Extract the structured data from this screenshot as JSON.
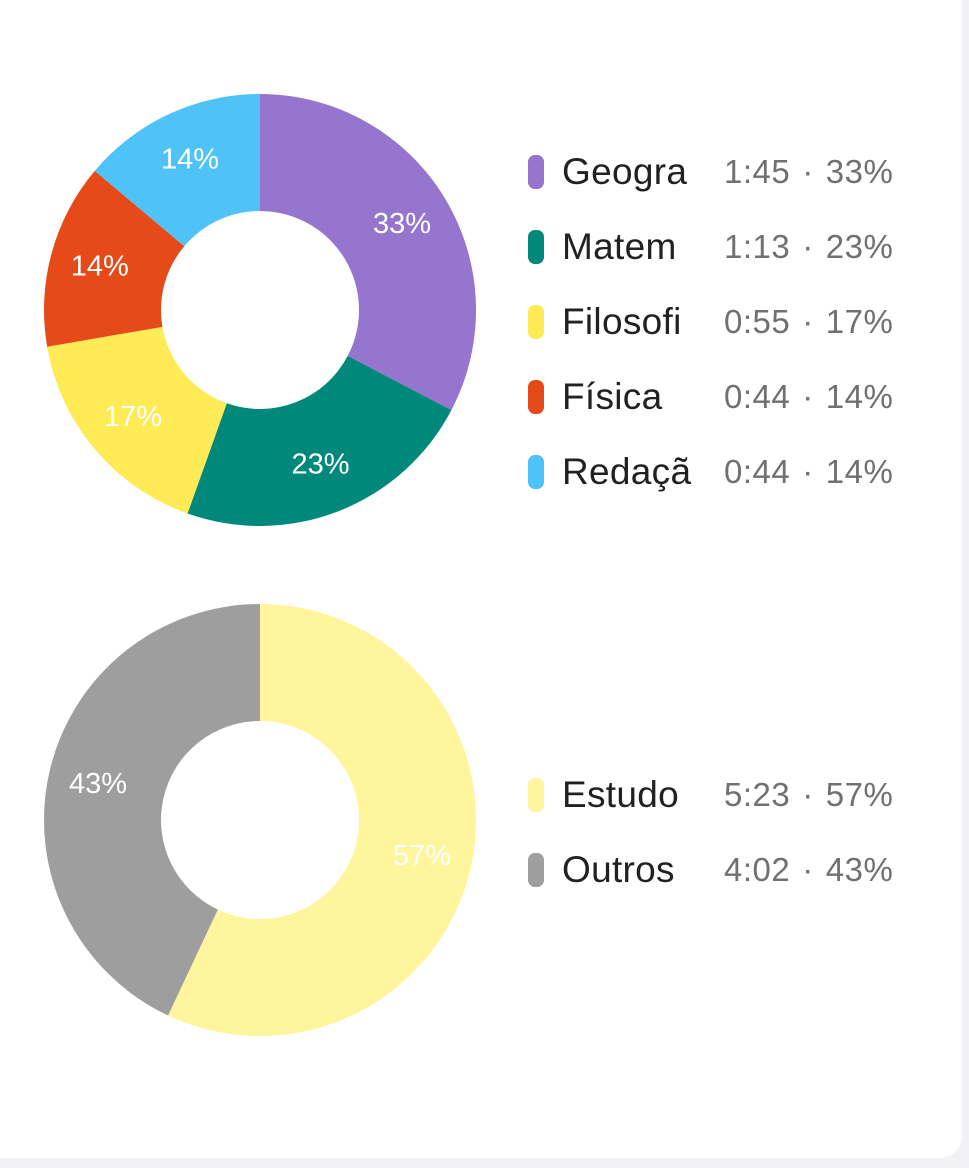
{
  "chart_data": [
    {
      "type": "pie",
      "donut": true,
      "categories": [
        "Geogra",
        "Matem",
        "Filosofi",
        "Física",
        "Redaçã"
      ],
      "values": [
        33,
        23,
        17,
        14,
        14
      ],
      "slice_labels": [
        "33%",
        "23%",
        "17%",
        "14%",
        "14%"
      ],
      "colors": [
        "#9575cd",
        "#00897b",
        "#ffeb55",
        "#e64a19",
        "#4fc3f7"
      ],
      "label_colors": [
        "#ffffff",
        "#ffffff",
        "#ffffff",
        "#ffffff",
        "#ffffff"
      ],
      "legend": [
        {
          "label": "Geogra",
          "time": "1:45",
          "percent": "33%",
          "sep": "·"
        },
        {
          "label": "Matem",
          "time": "1:13",
          "percent": "23%",
          "sep": "·"
        },
        {
          "label": "Filosofi",
          "time": "0:55",
          "percent": "17%",
          "sep": "·"
        },
        {
          "label": "Física",
          "time": "0:44",
          "percent": "14%",
          "sep": "·"
        },
        {
          "label": "Redaçã",
          "time": "0:44",
          "percent": "14%",
          "sep": "·"
        }
      ],
      "legend_placement": "right"
    },
    {
      "type": "pie",
      "donut": true,
      "categories": [
        "Estudo",
        "Outros"
      ],
      "values": [
        57,
        43
      ],
      "slice_labels": [
        "57%",
        "43%"
      ],
      "colors": [
        "#fff59d",
        "#9e9e9e"
      ],
      "label_colors": [
        "#ffffff",
        "#ffffff"
      ],
      "legend": [
        {
          "label": "Estudo",
          "time": "5:23",
          "percent": "57%",
          "sep": "·"
        },
        {
          "label": "Outros",
          "time": "4:02",
          "percent": "43%",
          "sep": "·"
        }
      ],
      "legend_placement": "right"
    }
  ]
}
